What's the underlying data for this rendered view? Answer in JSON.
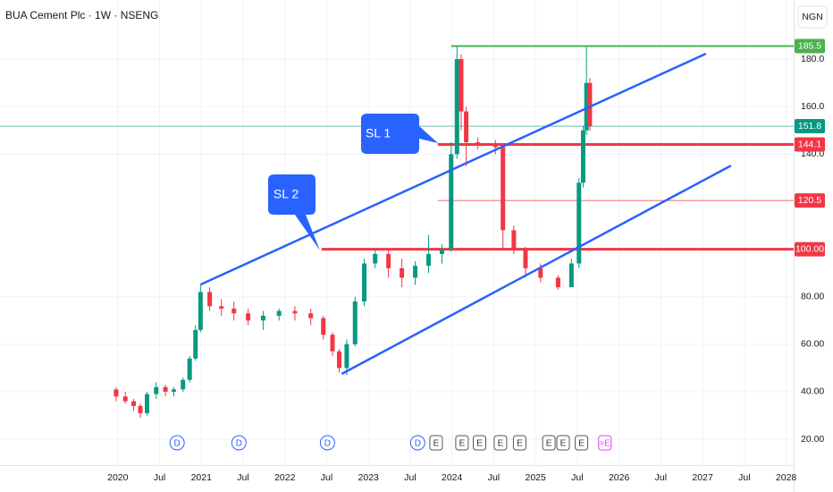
{
  "chart_data": {
    "type": "candlestick",
    "title": "BUA Cement Plc · 1W · NSENG",
    "currency": "NGN",
    "up_color": "#089981",
    "down_color": "#f23645",
    "grid": true,
    "xlim": [
      2018.59,
      2028.09
    ],
    "xticks": [
      2020,
      {
        "value": 2020.5,
        "label": "Jul"
      },
      2021,
      {
        "value": 2021.5,
        "label": "Jul"
      },
      2022,
      {
        "value": 2022.5,
        "label": "Jul"
      },
      2023,
      {
        "value": 2023.5,
        "label": "Jul"
      },
      2024,
      {
        "value": 2024.5,
        "label": "Jul"
      },
      2025,
      {
        "value": 2025.5,
        "label": "Jul"
      },
      2026,
      {
        "value": 2026.5,
        "label": "Jul"
      },
      2027,
      {
        "value": 2027.5,
        "label": "Jul"
      },
      2028
    ],
    "ylim": [
      9.1,
      204.9
    ],
    "yticks": [
      {
        "value": 20,
        "label": "20.00"
      },
      {
        "value": 40,
        "label": "40.00"
      },
      {
        "value": 60,
        "label": "60.00"
      },
      {
        "value": 80,
        "label": "80.00"
      },
      {
        "value": 140,
        "label": "140.0"
      },
      {
        "value": 160,
        "label": "160.0"
      },
      {
        "value": 180,
        "label": "180.0"
      }
    ],
    "x": [
      2019.98,
      2020.09,
      2020.19,
      2020.27,
      2020.35,
      2020.46,
      2020.57,
      2020.67,
      2020.78,
      2020.86,
      2020.93,
      2020.99,
      2021.1,
      2021.24,
      2021.39,
      2021.56,
      2021.74,
      2021.93,
      2022.12,
      2022.31,
      2022.46,
      2022.57,
      2022.65,
      2022.74,
      2022.84,
      2022.95,
      2023.08,
      2023.24,
      2023.4,
      2023.56,
      2023.72,
      2023.88,
      2023.99,
      2024.06,
      2024.11,
      2024.17,
      2024.31,
      2024.52,
      2024.61,
      2024.74,
      2024.88,
      2025.06,
      2025.27,
      2025.43,
      2025.52,
      2025.57,
      2025.61,
      2025.65
    ],
    "open": [
      41,
      38,
      36,
      34,
      31,
      39,
      42,
      40,
      41,
      45,
      54,
      66,
      82,
      76,
      75,
      73,
      70,
      72,
      74,
      73,
      71,
      64,
      57,
      50,
      60,
      78,
      94,
      98,
      92,
      88,
      93,
      98,
      100,
      140,
      180,
      158,
      145,
      144,
      143,
      108,
      100,
      92,
      88,
      84,
      94,
      128,
      150,
      170
    ],
    "high": [
      42,
      40,
      37,
      35,
      40,
      44,
      43,
      42,
      46,
      55,
      68,
      85,
      84,
      79,
      78,
      75,
      74,
      75,
      76,
      75,
      72,
      65,
      58,
      62,
      80,
      96,
      100,
      100,
      96,
      95,
      106,
      102,
      145,
      185.5,
      182,
      160,
      147,
      146,
      144,
      110,
      101,
      94,
      89,
      96,
      130,
      152,
      185,
      172
    ],
    "low": [
      36,
      35,
      32,
      29,
      30,
      37,
      38,
      38,
      40,
      44,
      53,
      65,
      74,
      72,
      70,
      68,
      66,
      70,
      70,
      68,
      62,
      55,
      48,
      47,
      59,
      76,
      92,
      88,
      84,
      85,
      90,
      94,
      99,
      138,
      150,
      135,
      142,
      140,
      100,
      98,
      88,
      86,
      83,
      84,
      92,
      126,
      148,
      150
    ],
    "close": [
      38,
      36,
      34,
      31,
      39,
      42,
      40,
      41,
      45,
      54,
      66,
      82,
      76,
      75,
      73,
      70,
      72,
      74,
      73,
      71,
      64,
      57,
      50,
      60,
      78,
      94,
      98,
      92,
      88,
      93,
      98,
      100,
      140,
      180,
      158,
      145,
      144,
      143,
      108,
      100,
      92,
      88,
      84,
      94,
      128,
      150,
      170,
      151.8
    ],
    "trendlines": [
      {
        "points": [
          [
            2020.99,
            85.1
          ],
          [
            2027.04,
            182.3
          ]
        ],
        "color": "#2962ff"
      },
      {
        "points": [
          [
            2022.68,
            47.5
          ],
          [
            2027.34,
            135.2
          ]
        ],
        "color": "#2962ff"
      }
    ],
    "price_lines": [
      {
        "value": 185.5,
        "start": 2023.99,
        "color": "#4caf50",
        "width": 2
      },
      {
        "value": 151.8,
        "start": 2018.59,
        "color": "#089981",
        "width": 0.6
      },
      {
        "value": 144.1,
        "start": 2023.83,
        "color": "#f23645",
        "width": 3
      },
      {
        "value": 120.5,
        "start": 2023.83,
        "color": "#f23645",
        "width": 0.8
      },
      {
        "value": 100,
        "value_label": "100.00",
        "start": 2022.44,
        "color": "#f23645",
        "width": 3
      }
    ],
    "callouts": [
      {
        "text": "SL 1"
      },
      {
        "text": "SL 2"
      }
    ],
    "events": [
      {
        "x": 2020.71,
        "label": "D"
      },
      {
        "x": 2021.45,
        "label": "D"
      },
      {
        "x": 2022.51,
        "label": "D"
      },
      {
        "x": 2023.59,
        "label": "D"
      },
      {
        "x": 2023.81,
        "label": "E"
      },
      {
        "x": 2024.12,
        "label": "E"
      },
      {
        "x": 2024.33,
        "label": "E"
      },
      {
        "x": 2024.58,
        "label": "E"
      },
      {
        "x": 2024.81,
        "label": "E"
      },
      {
        "x": 2025.16,
        "label": "E"
      },
      {
        "x": 2025.33,
        "label": "E"
      },
      {
        "x": 2025.55,
        "label": "E"
      },
      {
        "x": 2025.83,
        "label": "≈E"
      }
    ]
  }
}
